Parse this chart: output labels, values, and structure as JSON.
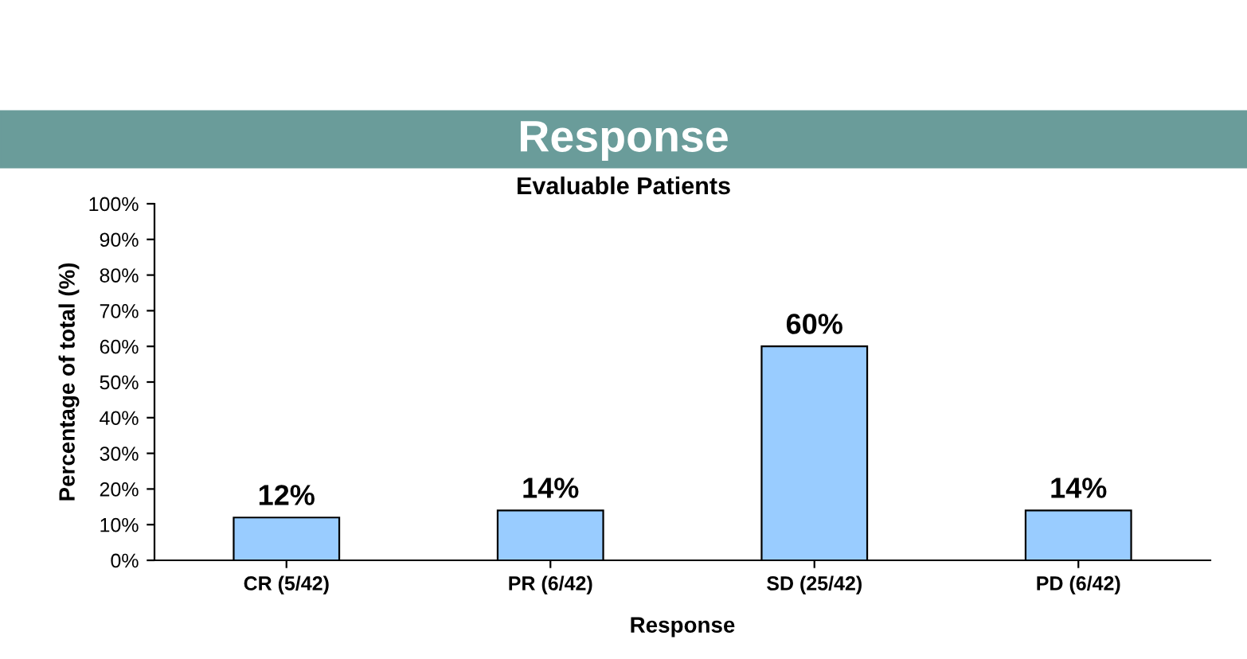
{
  "chart_data": {
    "type": "bar",
    "title": "Response",
    "subtitle": "Evaluable Patients",
    "xlabel": "Response",
    "ylabel": "Percentage of total (%)",
    "categories": [
      "CR (5/42)",
      "PR (6/42)",
      "SD (25/42)",
      "PD (6/42)"
    ],
    "values": [
      12,
      14,
      60,
      14
    ],
    "color": "#99ccff",
    "value_labels": [
      "12%",
      "14%",
      "60%",
      "14%"
    ],
    "ylim": [
      0,
      100
    ],
    "yticks": [
      {
        "value": 0,
        "label": "0%"
      },
      {
        "value": 10,
        "label": "10%"
      },
      {
        "value": 20,
        "label": "20%"
      },
      {
        "value": 30,
        "label": "30%"
      },
      {
        "value": 40,
        "label": "40%"
      },
      {
        "value": 50,
        "label": "50%"
      },
      {
        "value": 60,
        "label": "60%"
      },
      {
        "value": 70,
        "label": "70%"
      },
      {
        "value": 80,
        "label": "80%"
      },
      {
        "value": 90,
        "label": "90%"
      },
      {
        "value": 100,
        "label": "100%"
      }
    ],
    "grid": false,
    "legend": false
  }
}
